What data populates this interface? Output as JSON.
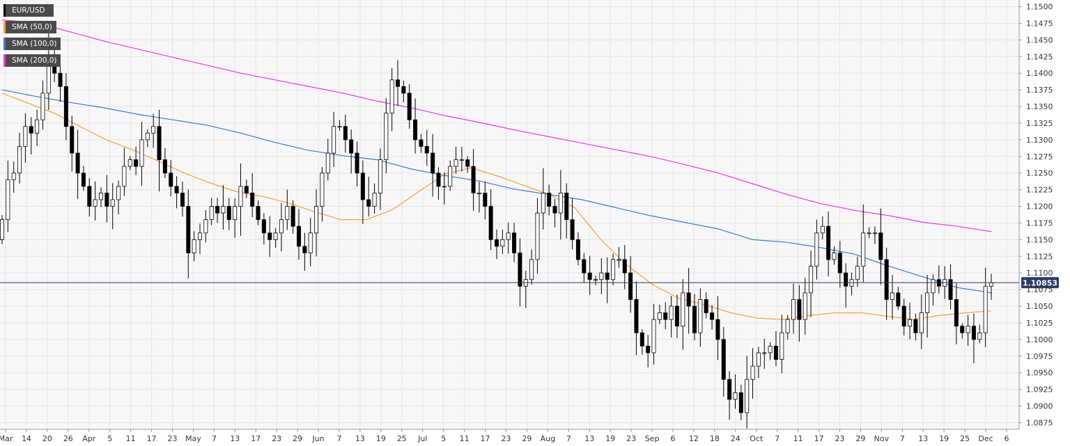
{
  "legend": {
    "symbol": "EUR/USD",
    "sma50": "SMA (50,0)",
    "sma100": "SMA (100,0)",
    "sma200": "SMA (200,0)"
  },
  "colors": {
    "symbol": "#000000",
    "sma50": "#f5a031",
    "sma100": "#3c7ac9",
    "sma200": "#ee35ee",
    "bull": "#ffffff",
    "bear": "#000000",
    "price_line": "#2b3a67",
    "price_tag": "#2b3a67",
    "grid": "#e5e5e5"
  },
  "chart_data": {
    "type": "candlestick",
    "title": "",
    "current_price": 1.10853,
    "current_price_label": "1.10853",
    "ylim": [
      1.0865,
      1.151
    ],
    "yticks": [
      "1.1500",
      "1.1475",
      "1.1450",
      "1.1425",
      "1.1400",
      "1.1375",
      "1.1350",
      "1.1325",
      "1.1300",
      "1.1275",
      "1.1250",
      "1.1225",
      "1.1200",
      "1.1175",
      "1.1150",
      "1.1125",
      "1.1100",
      "1.1075",
      "1.1050",
      "1.1025",
      "1.1000",
      "1.0975",
      "1.0950",
      "1.0925",
      "1.0900",
      "1.0875"
    ],
    "xticks": [
      "Mar",
      "14",
      "20",
      "26",
      "Apr",
      "5",
      "11",
      "17",
      "23",
      "May",
      "7",
      "13",
      "17",
      "23",
      "29",
      "Jun",
      "7",
      "13",
      "19",
      "25",
      "Jul",
      "5",
      "11",
      "17",
      "23",
      "29",
      "Aug",
      "7",
      "13",
      "19",
      "23",
      "Sep",
      "6",
      "12",
      "18",
      "24",
      "Oct",
      "7",
      "11",
      "17",
      "23",
      "29",
      "Nov",
      "7",
      "13",
      "19",
      "25",
      "Dec",
      "6"
    ],
    "grid": true,
    "legend_position": "top-left",
    "series": [
      {
        "name": "EUR/USD",
        "type": "candlestick",
        "close": [
          1.118,
          1.124,
          1.125,
          1.129,
          1.132,
          1.131,
          1.133,
          1.137,
          1.142,
          1.14,
          1.138,
          1.132,
          1.128,
          1.125,
          1.123,
          1.12,
          1.121,
          1.122,
          1.12,
          1.121,
          1.123,
          1.126,
          1.127,
          1.126,
          1.13,
          1.131,
          1.132,
          1.127,
          1.125,
          1.123,
          1.122,
          1.12,
          1.113,
          1.115,
          1.116,
          1.118,
          1.12,
          1.119,
          1.12,
          1.118,
          1.12,
          1.123,
          1.122,
          1.12,
          1.118,
          1.116,
          1.115,
          1.116,
          1.118,
          1.12,
          1.117,
          1.114,
          1.113,
          1.116,
          1.12,
          1.125,
          1.128,
          1.132,
          1.132,
          1.13,
          1.128,
          1.125,
          1.121,
          1.12,
          1.122,
          1.127,
          1.134,
          1.139,
          1.138,
          1.137,
          1.133,
          1.13,
          1.129,
          1.128,
          1.125,
          1.123,
          1.123,
          1.126,
          1.127,
          1.127,
          1.126,
          1.122,
          1.122,
          1.12,
          1.115,
          1.114,
          1.115,
          1.116,
          1.113,
          1.108,
          1.109,
          1.112,
          1.119,
          1.122,
          1.12,
          1.119,
          1.122,
          1.118,
          1.115,
          1.112,
          1.11,
          1.109,
          1.109,
          1.11,
          1.109,
          1.112,
          1.112,
          1.11,
          1.106,
          1.101,
          1.099,
          1.098,
          1.103,
          1.104,
          1.103,
          1.105,
          1.102,
          1.107,
          1.105,
          1.101,
          1.106,
          1.104,
          1.103,
          1.1,
          1.094,
          1.091,
          1.092,
          1.089,
          1.094,
          1.096,
          1.098,
          1.098,
          1.099,
          1.097,
          1.101,
          1.103,
          1.106,
          1.103,
          1.107,
          1.111,
          1.116,
          1.117,
          1.112,
          1.113,
          1.11,
          1.108,
          1.109,
          1.111,
          1.116,
          1.116,
          1.116,
          1.112,
          1.106,
          1.107,
          1.105,
          1.102,
          1.103,
          1.101,
          1.104,
          1.107,
          1.109,
          1.108,
          1.109,
          1.106,
          1.102,
          1.101,
          1.102,
          1.1,
          1.101,
          1.108,
          1.1085
        ]
      }
    ],
    "sma": {
      "sma50": [
        1.137,
        1.1355,
        1.134,
        1.132,
        1.13,
        1.1285,
        1.1268,
        1.125,
        1.1235,
        1.1222,
        1.1215,
        1.1205,
        1.1192,
        1.118,
        1.118,
        1.1195,
        1.1222,
        1.1248,
        1.1258,
        1.1246,
        1.1232,
        1.1218,
        1.1198,
        1.115,
        1.1112,
        1.1082,
        1.1062,
        1.1052,
        1.104,
        1.1032,
        1.103,
        1.1036,
        1.104,
        1.104,
        1.1035,
        1.103,
        1.1036,
        1.104,
        1.1043
      ],
      "sma100": [
        1.1375,
        1.1365,
        1.1356,
        1.1348,
        1.1338,
        1.133,
        1.1322,
        1.131,
        1.1296,
        1.1284,
        1.1276,
        1.127,
        1.1256,
        1.1246,
        1.1238,
        1.1226,
        1.1218,
        1.121,
        1.1198,
        1.1186,
        1.1176,
        1.1166,
        1.115,
        1.1146,
        1.1138,
        1.1128,
        1.111,
        1.1094,
        1.1078,
        1.107
      ],
      "sma200": [
        1.148,
        1.1476,
        1.1462,
        1.1448,
        1.1436,
        1.1424,
        1.1412,
        1.14,
        1.139,
        1.138,
        1.137,
        1.1358,
        1.1348,
        1.1336,
        1.1326,
        1.1315,
        1.1305,
        1.1295,
        1.1285,
        1.1275,
        1.1263,
        1.125,
        1.1234,
        1.1218,
        1.1204,
        1.1194,
        1.1186,
        1.1176,
        1.117,
        1.1162
      ]
    }
  }
}
